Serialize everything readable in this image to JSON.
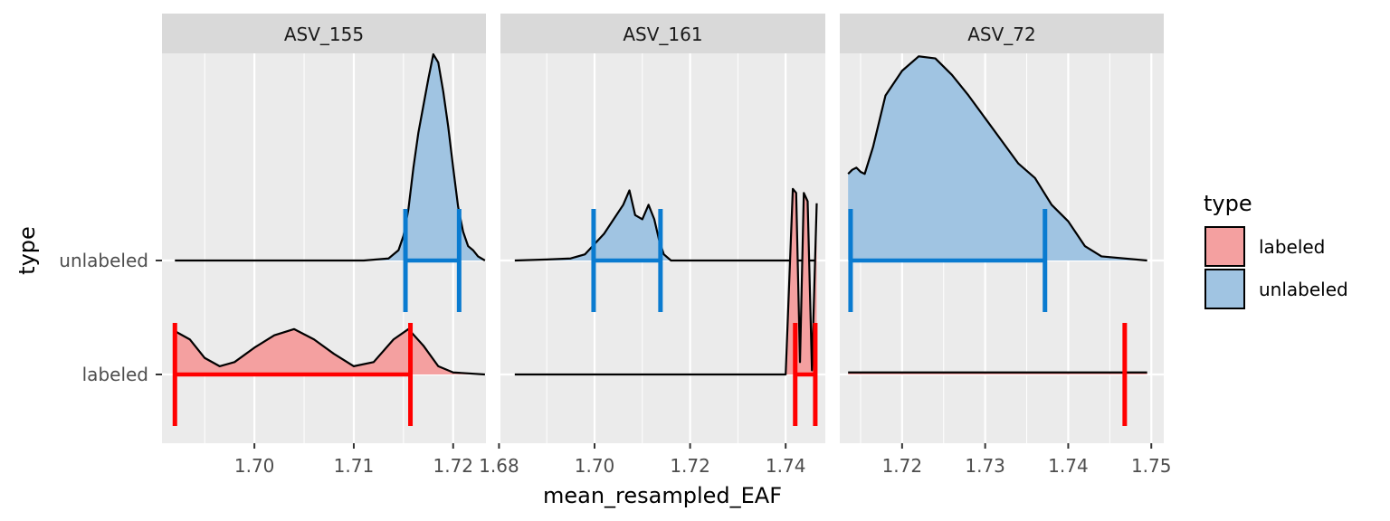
{
  "chart_data": {
    "type": "area",
    "subtype": "faceted ridgeline density with interval bars",
    "xlabel": "mean_resampled_EAF",
    "ylabel": "type",
    "y_categories": [
      "labeled",
      "unlabeled"
    ],
    "legend": {
      "title": "type",
      "position": "right",
      "entries": [
        {
          "label": "labeled",
          "fill": "#f4a0a0"
        },
        {
          "label": "unlabeled",
          "fill": "#a0c4e2"
        }
      ]
    },
    "colors": {
      "panel_bg": "#ebebeb",
      "strip_bg": "#d9d9d9",
      "grid": "#ffffff",
      "labeled_fill": "#f4a0a0",
      "unlabeled_fill": "#a0c4e2",
      "labeled_interval": "#ff0000",
      "unlabeled_interval": "#0a7bd0",
      "density_line": "#000000"
    },
    "grid": true,
    "facets": [
      {
        "name": "ASV_155",
        "xlim": [
          1.6907,
          1.7233
        ],
        "xticks": [
          1.7,
          1.71,
          1.72
        ],
        "xtick_labels": [
          "1.70",
          "1.71",
          "1.72"
        ],
        "series": [
          {
            "type": "unlabeled",
            "interval": [
              1.7152,
              1.7206
            ],
            "density_relative": [
              [
                1.692,
                0
              ],
              [
                1.711,
                0
              ],
              [
                1.7135,
                0.01
              ],
              [
                1.7145,
                0.05
              ],
              [
                1.715,
                0.12
              ],
              [
                1.7155,
                0.25
              ],
              [
                1.716,
                0.45
              ],
              [
                1.7165,
                0.62
              ],
              [
                1.717,
                0.75
              ],
              [
                1.7175,
                0.88
              ],
              [
                1.718,
                1.0
              ],
              [
                1.7185,
                0.96
              ],
              [
                1.719,
                0.82
              ],
              [
                1.7195,
                0.65
              ],
              [
                1.72,
                0.45
              ],
              [
                1.7205,
                0.26
              ],
              [
                1.721,
                0.14
              ],
              [
                1.7215,
                0.07
              ],
              [
                1.722,
                0.05
              ],
              [
                1.7225,
                0.02
              ],
              [
                1.7232,
                0
              ]
            ]
          },
          {
            "type": "labeled",
            "interval": [
              1.692,
              1.7157
            ],
            "density_relative": [
              [
                1.692,
                0.21
              ],
              [
                1.6935,
                0.17
              ],
              [
                1.695,
                0.08
              ],
              [
                1.6965,
                0.04
              ],
              [
                1.698,
                0.06
              ],
              [
                1.7,
                0.13
              ],
              [
                1.702,
                0.19
              ],
              [
                1.704,
                0.22
              ],
              [
                1.706,
                0.17
              ],
              [
                1.708,
                0.1
              ],
              [
                1.71,
                0.04
              ],
              [
                1.712,
                0.06
              ],
              [
                1.714,
                0.17
              ],
              [
                1.7155,
                0.22
              ],
              [
                1.717,
                0.14
              ],
              [
                1.7185,
                0.04
              ],
              [
                1.72,
                0.01
              ],
              [
                1.7232,
                0
              ]
            ]
          }
        ]
      },
      {
        "name": "ASV_161",
        "xlim": [
          1.6803,
          1.7483
        ],
        "xticks": [
          1.68,
          1.7,
          1.72,
          1.74
        ],
        "xtick_labels": [
          "1.68",
          "1.70",
          "1.72",
          "1.74"
        ],
        "series": [
          {
            "type": "unlabeled",
            "interval": [
              1.6998,
              1.7138
            ],
            "density_relative": [
              [
                1.6833,
                0
              ],
              [
                1.69,
                0.005
              ],
              [
                1.695,
                0.01
              ],
              [
                1.698,
                0.03
              ],
              [
                1.7,
                0.08
              ],
              [
                1.702,
                0.13
              ],
              [
                1.704,
                0.2
              ],
              [
                1.706,
                0.27
              ],
              [
                1.7073,
                0.34
              ],
              [
                1.7085,
                0.22
              ],
              [
                1.71,
                0.2
              ],
              [
                1.7113,
                0.27
              ],
              [
                1.7125,
                0.2
              ],
              [
                1.7135,
                0.1
              ],
              [
                1.7145,
                0.03
              ],
              [
                1.716,
                0
              ],
              [
                1.7465,
                0
              ]
            ]
          },
          {
            "type": "labeled",
            "interval": [
              1.742,
              1.7462
            ],
            "density_relative": [
              [
                1.6833,
                0
              ],
              [
                1.74,
                0
              ],
              [
                1.7415,
                0.9
              ],
              [
                1.7422,
                0.88
              ],
              [
                1.743,
                0.06
              ],
              [
                1.7438,
                0.88
              ],
              [
                1.7446,
                0.84
              ],
              [
                1.7455,
                0.02
              ],
              [
                1.7465,
                0.83
              ]
            ]
          }
        ]
      },
      {
        "name": "ASV_72",
        "xlim": [
          1.7125,
          1.7515
        ],
        "xticks": [
          1.72,
          1.73,
          1.74,
          1.75
        ],
        "xtick_labels": [
          "1.72",
          "1.73",
          "1.74",
          "1.75"
        ],
        "series": [
          {
            "type": "unlabeled",
            "interval": [
              1.7138,
              1.7372
            ],
            "density_relative": [
              [
                1.7135,
                0.42
              ],
              [
                1.714,
                0.44
              ],
              [
                1.7145,
                0.45
              ],
              [
                1.715,
                0.43
              ],
              [
                1.7155,
                0.42
              ],
              [
                1.7165,
                0.55
              ],
              [
                1.718,
                0.8
              ],
              [
                1.72,
                0.92
              ],
              [
                1.722,
                0.99
              ],
              [
                1.724,
                0.98
              ],
              [
                1.726,
                0.9
              ],
              [
                1.728,
                0.8
              ],
              [
                1.73,
                0.69
              ],
              [
                1.732,
                0.58
              ],
              [
                1.734,
                0.47
              ],
              [
                1.736,
                0.4
              ],
              [
                1.738,
                0.27
              ],
              [
                1.74,
                0.19
              ],
              [
                1.742,
                0.07
              ],
              [
                1.744,
                0.02
              ],
              [
                1.7495,
                0
              ]
            ]
          },
          {
            "type": "labeled",
            "interval": [
              1.7468,
              1.7468
            ],
            "density_relative": [
              [
                1.7135,
                0.01
              ],
              [
                1.7495,
                0.01
              ]
            ]
          }
        ]
      }
    ]
  }
}
